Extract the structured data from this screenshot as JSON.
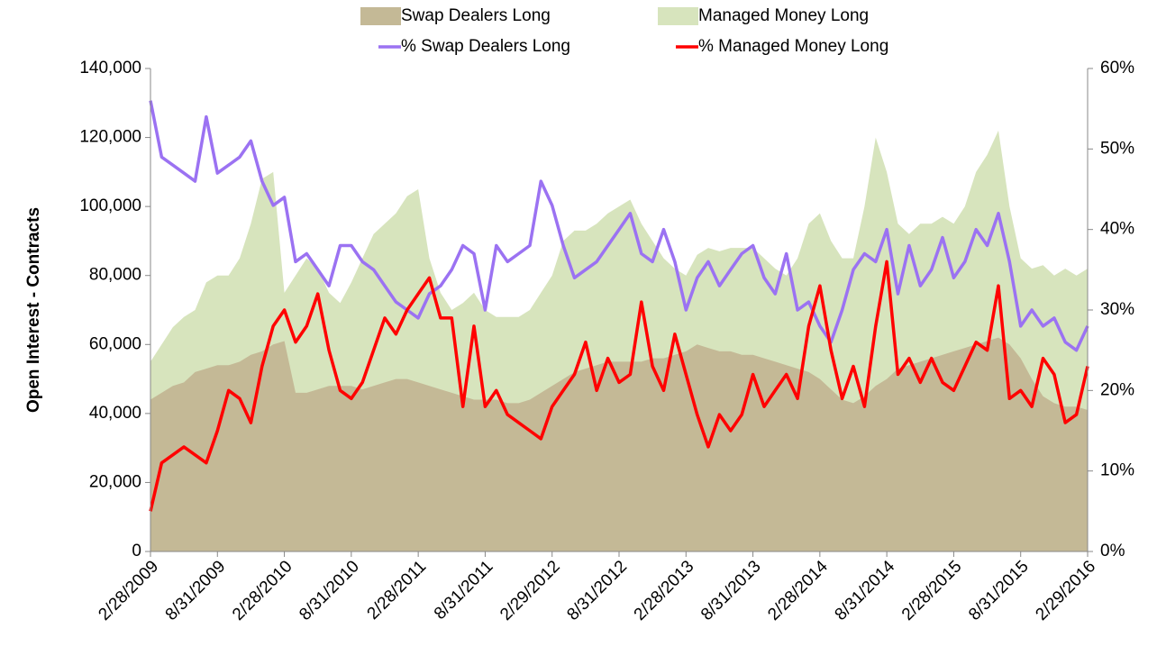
{
  "chart_data": {
    "type": "area-line",
    "ylabel": "Open Interest - Contracts",
    "categories": [
      "2/28/2009",
      null,
      null,
      null,
      null,
      null,
      "8/31/2009",
      null,
      null,
      null,
      null,
      null,
      "2/28/2010",
      null,
      null,
      null,
      null,
      null,
      "8/31/2010",
      null,
      null,
      null,
      null,
      null,
      "2/28/2011",
      null,
      null,
      null,
      null,
      null,
      "8/31/2011",
      null,
      null,
      null,
      null,
      null,
      "2/29/2012",
      null,
      null,
      null,
      null,
      null,
      "8/31/2012",
      null,
      null,
      null,
      null,
      null,
      "2/28/2013",
      null,
      null,
      null,
      null,
      null,
      "8/31/2013",
      null,
      null,
      null,
      null,
      null,
      "2/28/2014",
      null,
      null,
      null,
      null,
      null,
      "8/31/2014",
      null,
      null,
      null,
      null,
      null,
      "2/28/2015",
      null,
      null,
      null,
      null,
      null,
      "8/31/2015",
      null,
      null,
      null,
      null,
      null,
      "2/29/2016"
    ],
    "series": [
      {
        "name": "Managed Money Long",
        "kind": "area",
        "color": "#d7e4bd",
        "values": [
          55000,
          60000,
          65000,
          68000,
          70000,
          78000,
          80000,
          80000,
          85000,
          95000,
          108000,
          110000,
          75000,
          80000,
          85000,
          82000,
          75000,
          72000,
          78000,
          85000,
          92000,
          95000,
          98000,
          103000,
          105000,
          85000,
          75000,
          70000,
          72000,
          75000,
          70000,
          68000,
          68000,
          68000,
          70000,
          75000,
          80000,
          90000,
          93000,
          93000,
          95000,
          98000,
          100000,
          102000,
          95000,
          90000,
          85000,
          82000,
          80000,
          86000,
          88000,
          87000,
          88000,
          88000,
          88000,
          85000,
          82000,
          80000,
          85000,
          95000,
          98000,
          90000,
          85000,
          85000,
          100000,
          120000,
          110000,
          95000,
          92000,
          95000,
          95000,
          97000,
          95000,
          100000,
          110000,
          115000,
          122000,
          100000,
          85000,
          82000,
          83000,
          80000,
          82000,
          80000,
          82000
        ]
      },
      {
        "name": "Swap Dealers Long",
        "kind": "area",
        "color": "#c4b996",
        "values": [
          44000,
          46000,
          48000,
          49000,
          52000,
          53000,
          54000,
          54000,
          55000,
          57000,
          58000,
          60000,
          61000,
          46000,
          46000,
          47000,
          48000,
          48000,
          48000,
          47000,
          48000,
          49000,
          50000,
          50000,
          49000,
          48000,
          47000,
          46000,
          45000,
          44000,
          44000,
          44000,
          43000,
          43000,
          44000,
          46000,
          48000,
          50000,
          52000,
          53000,
          54000,
          55000,
          55000,
          55000,
          55000,
          56000,
          56000,
          57000,
          58000,
          60000,
          59000,
          58000,
          58000,
          57000,
          57000,
          56000,
          55000,
          54000,
          53000,
          52000,
          50000,
          47000,
          44000,
          43000,
          45000,
          48000,
          50000,
          53000,
          54000,
          55000,
          56000,
          57000,
          58000,
          59000,
          60000,
          61000,
          62000,
          60000,
          56000,
          50000,
          45000,
          43000,
          42000,
          42000,
          41000
        ]
      },
      {
        "name": "% Swap Dealers Long",
        "kind": "line",
        "axis": "y2",
        "color": "#9b72f2",
        "values": [
          56,
          49,
          48,
          47,
          46,
          54,
          47,
          48,
          49,
          51,
          46,
          43,
          44,
          36,
          37,
          35,
          33,
          38,
          38,
          36,
          35,
          33,
          31,
          30,
          29,
          32,
          33,
          35,
          38,
          37,
          30,
          38,
          36,
          37,
          38,
          46,
          43,
          38,
          34,
          35,
          36,
          38,
          40,
          42,
          37,
          36,
          40,
          36,
          30,
          34,
          36,
          33,
          35,
          37,
          38,
          34,
          32,
          37,
          30,
          31,
          28,
          26,
          30,
          35,
          37,
          36,
          40,
          32,
          38,
          33,
          35,
          39,
          34,
          36,
          40,
          38,
          42,
          36,
          28,
          30,
          28,
          29,
          26,
          25,
          28
        ]
      },
      {
        "name": "% Managed Money Long",
        "kind": "line",
        "axis": "y2",
        "color": "#ff0000",
        "values": [
          5,
          11,
          12,
          13,
          12,
          11,
          15,
          20,
          19,
          16,
          23,
          28,
          30,
          26,
          28,
          32,
          25,
          20,
          19,
          21,
          25,
          29,
          27,
          30,
          32,
          34,
          29,
          29,
          18,
          28,
          18,
          20,
          17,
          16,
          15,
          14,
          18,
          20,
          22,
          26,
          20,
          24,
          21,
          22,
          31,
          23,
          20,
          27,
          22,
          17,
          13,
          17,
          15,
          17,
          22,
          18,
          20,
          22,
          19,
          28,
          33,
          25,
          19,
          23,
          18,
          28,
          36,
          22,
          24,
          21,
          24,
          21,
          20,
          23,
          26,
          25,
          33,
          19,
          20,
          18,
          24,
          22,
          16,
          17,
          23
        ]
      }
    ],
    "ylim": [
      0,
      140000
    ],
    "yticks": [
      0,
      {
        "value": 20000,
        "label": "20,000"
      },
      {
        "value": 40000,
        "label": "40,000"
      },
      {
        "value": 60000,
        "label": "60,000"
      },
      {
        "value": 80000,
        "label": "80,000"
      },
      {
        "value": 100000,
        "label": "100,000"
      },
      {
        "value": 120000,
        "label": "120,000"
      },
      {
        "value": 140000,
        "label": "140,000"
      }
    ],
    "y2lim": [
      0,
      60
    ],
    "y2ticks": [
      {
        "value": 0,
        "label": "0%"
      },
      {
        "value": 10,
        "label": "10%"
      },
      {
        "value": 20,
        "label": "20%"
      },
      {
        "value": 30,
        "label": "30%"
      },
      {
        "value": 40,
        "label": "40%"
      },
      {
        "value": 50,
        "label": "50%"
      },
      {
        "value": 60,
        "label": "60%"
      }
    ],
    "legend": "top"
  }
}
